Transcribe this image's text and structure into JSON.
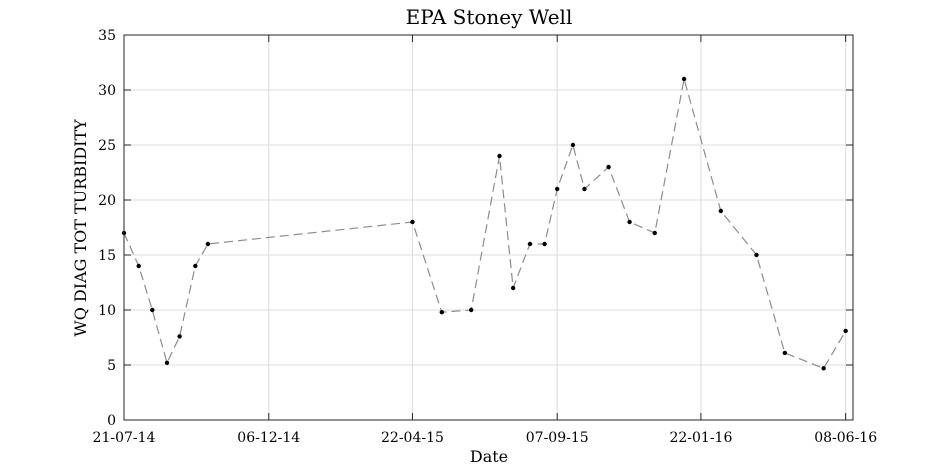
{
  "chart_data": {
    "type": "line",
    "title": "EPA Stoney Well",
    "xlabel": "Date",
    "ylabel": "WQ DIAG TOT TURBIDITY",
    "ylim": [
      0,
      35
    ],
    "yticks": [
      0,
      5,
      10,
      15,
      20,
      25,
      30,
      35
    ],
    "xlim": [
      "2014-07-21",
      "2016-06-15"
    ],
    "xticks": [
      {
        "date": "2014-07-21",
        "label": "21-07-14"
      },
      {
        "date": "2014-12-06",
        "label": "06-12-14"
      },
      {
        "date": "2015-04-22",
        "label": "22-04-15"
      },
      {
        "date": "2015-09-07",
        "label": "07-09-15"
      },
      {
        "date": "2016-01-22",
        "label": "22-01-16"
      },
      {
        "date": "2016-06-08",
        "label": "08-06-16"
      }
    ],
    "grid": true,
    "line_style": "dashed",
    "line_color": "#8c8c8c",
    "marker_color": "#000000",
    "series": [
      {
        "points": [
          {
            "x": "2014-07-21",
            "y": 17
          },
          {
            "x": "2014-08-04",
            "y": 14
          },
          {
            "x": "2014-08-17",
            "y": 10
          },
          {
            "x": "2014-08-31",
            "y": 5.2
          },
          {
            "x": "2014-09-12",
            "y": 7.6
          },
          {
            "x": "2014-09-27",
            "y": 14
          },
          {
            "x": "2014-10-09",
            "y": 16
          },
          {
            "x": "2015-04-22",
            "y": 18
          },
          {
            "x": "2015-05-20",
            "y": 9.8
          },
          {
            "x": "2015-06-17",
            "y": 10
          },
          {
            "x": "2015-07-14",
            "y": 24
          },
          {
            "x": "2015-07-27",
            "y": 12
          },
          {
            "x": "2015-08-12",
            "y": 16
          },
          {
            "x": "2015-08-26",
            "y": 16
          },
          {
            "x": "2015-09-07",
            "y": 21
          },
          {
            "x": "2015-09-22",
            "y": 25
          },
          {
            "x": "2015-10-03",
            "y": 21
          },
          {
            "x": "2015-10-26",
            "y": 23
          },
          {
            "x": "2015-11-15",
            "y": 18
          },
          {
            "x": "2015-12-09",
            "y": 17
          },
          {
            "x": "2016-01-06",
            "y": 31
          },
          {
            "x": "2016-02-10",
            "y": 19
          },
          {
            "x": "2016-03-15",
            "y": 15
          },
          {
            "x": "2016-04-11",
            "y": 6.1
          },
          {
            "x": "2016-05-18",
            "y": 4.7
          },
          {
            "x": "2016-06-08",
            "y": 8.1
          }
        ]
      }
    ]
  }
}
